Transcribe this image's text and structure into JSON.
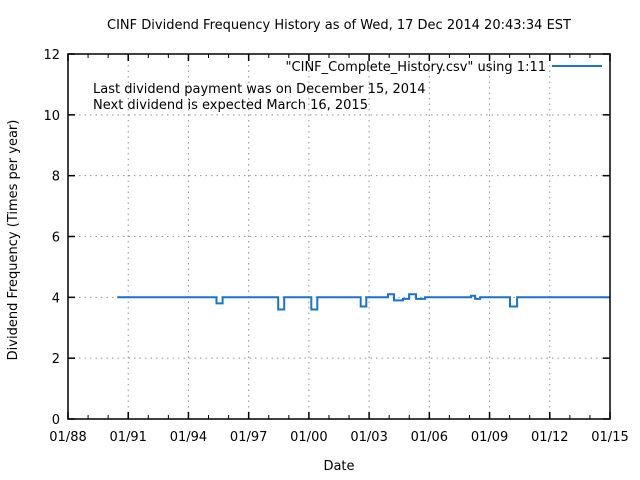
{
  "chart_data": {
    "type": "line",
    "title": "CINF Dividend Frequency History as of Wed, 17 Dec 2014 20:43:34 EST",
    "xlabel": "Date",
    "ylabel": "Dividend Frequency (Times per year)",
    "xlim": [
      1988,
      2015
    ],
    "ylim": [
      0,
      12
    ],
    "grid": true,
    "legend_position": "top-right",
    "legend_label": "\"CINF_Complete_History.csv\" using 1:11",
    "annotations": [
      "Last dividend payment was on December 15, 2014",
      "Next dividend is expected March 16, 2015"
    ],
    "line_color": "#1874cd",
    "grid_color": "#909090",
    "border_color": "#000000",
    "x_ticks": [
      {
        "label": "01/88",
        "year": 1988
      },
      {
        "label": "01/91",
        "year": 1991
      },
      {
        "label": "01/94",
        "year": 1994
      },
      {
        "label": "01/97",
        "year": 1997
      },
      {
        "label": "01/00",
        "year": 2000
      },
      {
        "label": "01/03",
        "year": 2003
      },
      {
        "label": "01/06",
        "year": 2006
      },
      {
        "label": "01/09",
        "year": 2009
      },
      {
        "label": "01/12",
        "year": 2012
      },
      {
        "label": "01/15",
        "year": 2015
      }
    ],
    "x_minor_tick_step_years": 1,
    "y_ticks": [
      0,
      2,
      4,
      6,
      8,
      10,
      12
    ],
    "series": [
      {
        "name": "\"CINF_Complete_History.csv\" using 1:11",
        "segments": [
          [
            1990.45,
            1995.4,
            4.0
          ],
          [
            1995.4,
            1995.7,
            3.8
          ],
          [
            1995.7,
            1998.47,
            4.0
          ],
          [
            1998.47,
            1998.77,
            3.6
          ],
          [
            1998.77,
            2000.12,
            4.0
          ],
          [
            2000.12,
            2000.42,
            3.6
          ],
          [
            2000.42,
            2002.58,
            4.0
          ],
          [
            2002.58,
            2002.86,
            3.7
          ],
          [
            2002.86,
            2003.94,
            4.0
          ],
          [
            2003.94,
            2004.24,
            4.1
          ],
          [
            2004.24,
            2004.69,
            3.9
          ],
          [
            2004.69,
            2004.99,
            3.95
          ],
          [
            2004.99,
            2005.34,
            4.1
          ],
          [
            2005.34,
            2005.79,
            3.95
          ],
          [
            2005.79,
            2008.08,
            4.0
          ],
          [
            2008.08,
            2008.28,
            4.05
          ],
          [
            2008.28,
            2008.53,
            3.95
          ],
          [
            2008.53,
            2010.02,
            4.0
          ],
          [
            2010.02,
            2010.37,
            3.7
          ],
          [
            2010.37,
            2014.96,
            4.0
          ]
        ]
      }
    ]
  }
}
